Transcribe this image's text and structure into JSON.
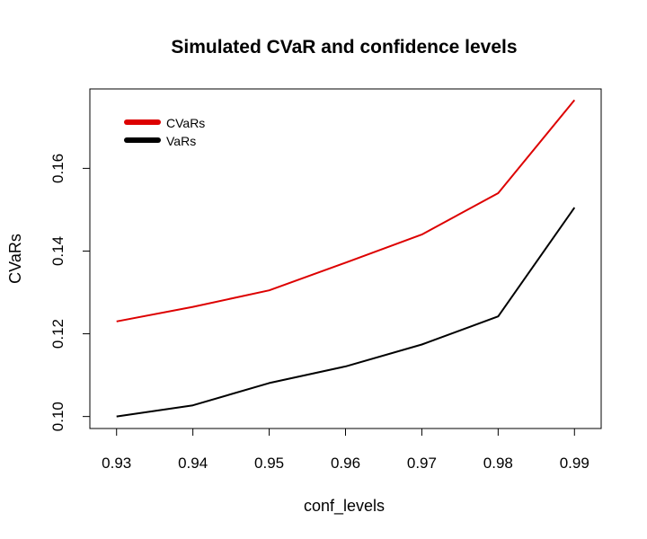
{
  "chart_data": {
    "type": "line",
    "title": "Simulated CVaR and confidence levels",
    "xlabel": "conf_levels",
    "ylabel": "CVaRs",
    "x": [
      0.93,
      0.94,
      0.95,
      0.96,
      0.97,
      0.98,
      0.99
    ],
    "x_tick_labels": [
      "0.93",
      "0.94",
      "0.95",
      "0.96",
      "0.97",
      "0.98",
      "0.99"
    ],
    "y_ticks": [
      0.1,
      0.12,
      0.14,
      0.16
    ],
    "y_tick_labels": [
      "0.10",
      "0.12",
      "0.14",
      "0.16"
    ],
    "xlim": [
      0.9265,
      0.9935
    ],
    "ylim": [
      0.0971,
      0.1792
    ],
    "grid": false,
    "legend_position": "top-left",
    "series": [
      {
        "name": "CVaRs",
        "color": "#dd0000",
        "values": [
          0.123,
          0.1265,
          0.1305,
          0.1372,
          0.144,
          0.154,
          0.1765
        ]
      },
      {
        "name": "VaRs",
        "color": "#000000",
        "values": [
          0.1,
          0.1027,
          0.1081,
          0.1121,
          0.1174,
          0.1242,
          0.1505
        ]
      }
    ]
  }
}
